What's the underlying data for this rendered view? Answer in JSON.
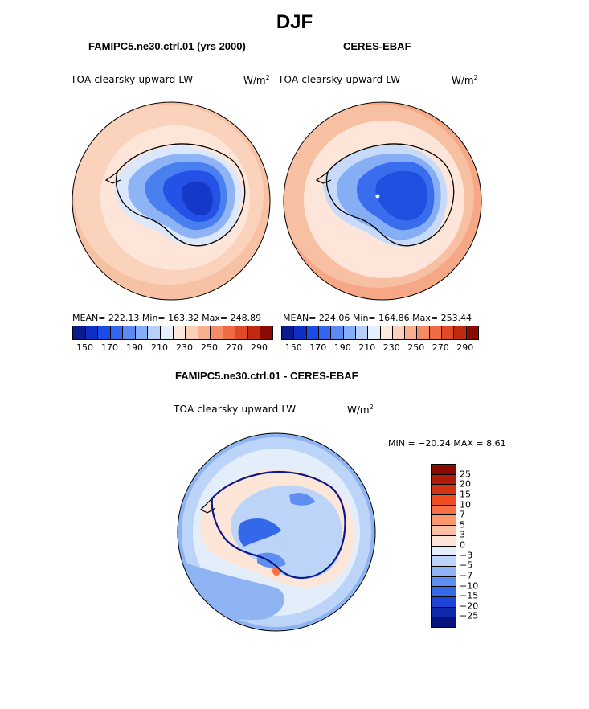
{
  "figure": {
    "title": "DJF"
  },
  "panels": [
    {
      "title": "FAMIPC5.ne30.ctrl.01 (yrs 2000)",
      "variable": "TOA clearsky upward LW",
      "unit_base": "W/m",
      "unit_exp": "2",
      "stats": "MEAN= 222.13   Min= 163.32   Max= 248.89"
    },
    {
      "title": "CERES-EBAF",
      "variable": "TOA clearsky upward LW",
      "unit_base": "W/m",
      "unit_exp": "2",
      "stats": "MEAN= 224.06   Min= 164.86   Max= 253.44"
    },
    {
      "title": "FAMIPC5.ne30.ctrl.01 - CERES-EBAF",
      "variable": "TOA clearsky upward LW",
      "unit_base": "W/m",
      "unit_exp": "2",
      "stats": "MIN = −20.24  MAX =    8.61"
    }
  ],
  "colorbar_main": {
    "tick_labels": [
      "150",
      "170",
      "190",
      "210",
      "230",
      "250",
      "270",
      "290"
    ],
    "colors": [
      "#0a1a8c",
      "#0d2fc4",
      "#1a4de6",
      "#3566ee",
      "#5a8af2",
      "#86aef6",
      "#b6d0fa",
      "#e6f0fc",
      "#fde8dc",
      "#fbd0b8",
      "#f8b090",
      "#f58c66",
      "#f06a42",
      "#e04a24",
      "#c02a10",
      "#8c0a04"
    ]
  },
  "colorbar_diff": {
    "tick_labels": [
      "25",
      "20",
      "15",
      "10",
      "7",
      "5",
      "3",
      "0",
      "−3",
      "−5",
      "−7",
      "−10",
      "−15",
      "−20",
      "−25"
    ],
    "colors": [
      "#8c0a04",
      "#b01c0a",
      "#d43214",
      "#f04c22",
      "#f77044",
      "#fa986e",
      "#fcc0a2",
      "#fde6d8",
      "#e4eefb",
      "#bcd4f8",
      "#8eb4f4",
      "#5e8ef0",
      "#3468ea",
      "#1c44d6",
      "#0e2aaa",
      "#061480"
    ]
  }
}
